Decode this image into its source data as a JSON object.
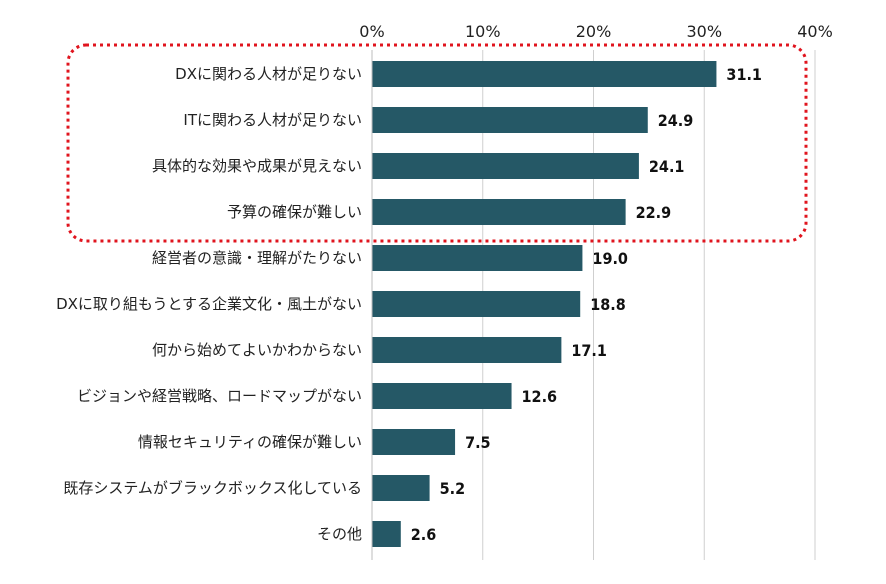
{
  "chart_data": {
    "type": "bar",
    "orientation": "horizontal",
    "title": "",
    "xlabel": "",
    "ylabel": "",
    "xlim": [
      0,
      40
    ],
    "ticks": [
      0,
      10,
      20,
      30,
      40
    ],
    "tick_labels": [
      "0%",
      "10%",
      "20%",
      "30%",
      "40%"
    ],
    "grid": true,
    "bar_color": "#255866",
    "highlight_color": "#e0141e",
    "highlight_group": [
      0,
      1,
      2,
      3
    ],
    "categories": [
      "DXに関わる人材が足りない",
      "ITに関わる人材が足りない",
      "具体的な効果や成果が見えない",
      "予算の確保が難しい",
      "経営者の意識・理解がたりない",
      "DXに取り組もうとする企業文化・風土がない",
      "何から始めてよいかわからない",
      "ビジョンや経営戦略、ロードマップがない",
      "情報セキュリティの確保が難しい",
      "既存システムがブラックボックス化している",
      "その他"
    ],
    "values": [
      31.1,
      24.9,
      24.1,
      22.9,
      19.0,
      18.8,
      17.1,
      12.6,
      7.5,
      5.2,
      2.6
    ],
    "value_labels": [
      "31.1",
      "24.9",
      "24.1",
      "22.9",
      "19.0",
      "18.8",
      "17.1",
      "12.6",
      "7.5",
      "5.2",
      "2.6"
    ]
  }
}
